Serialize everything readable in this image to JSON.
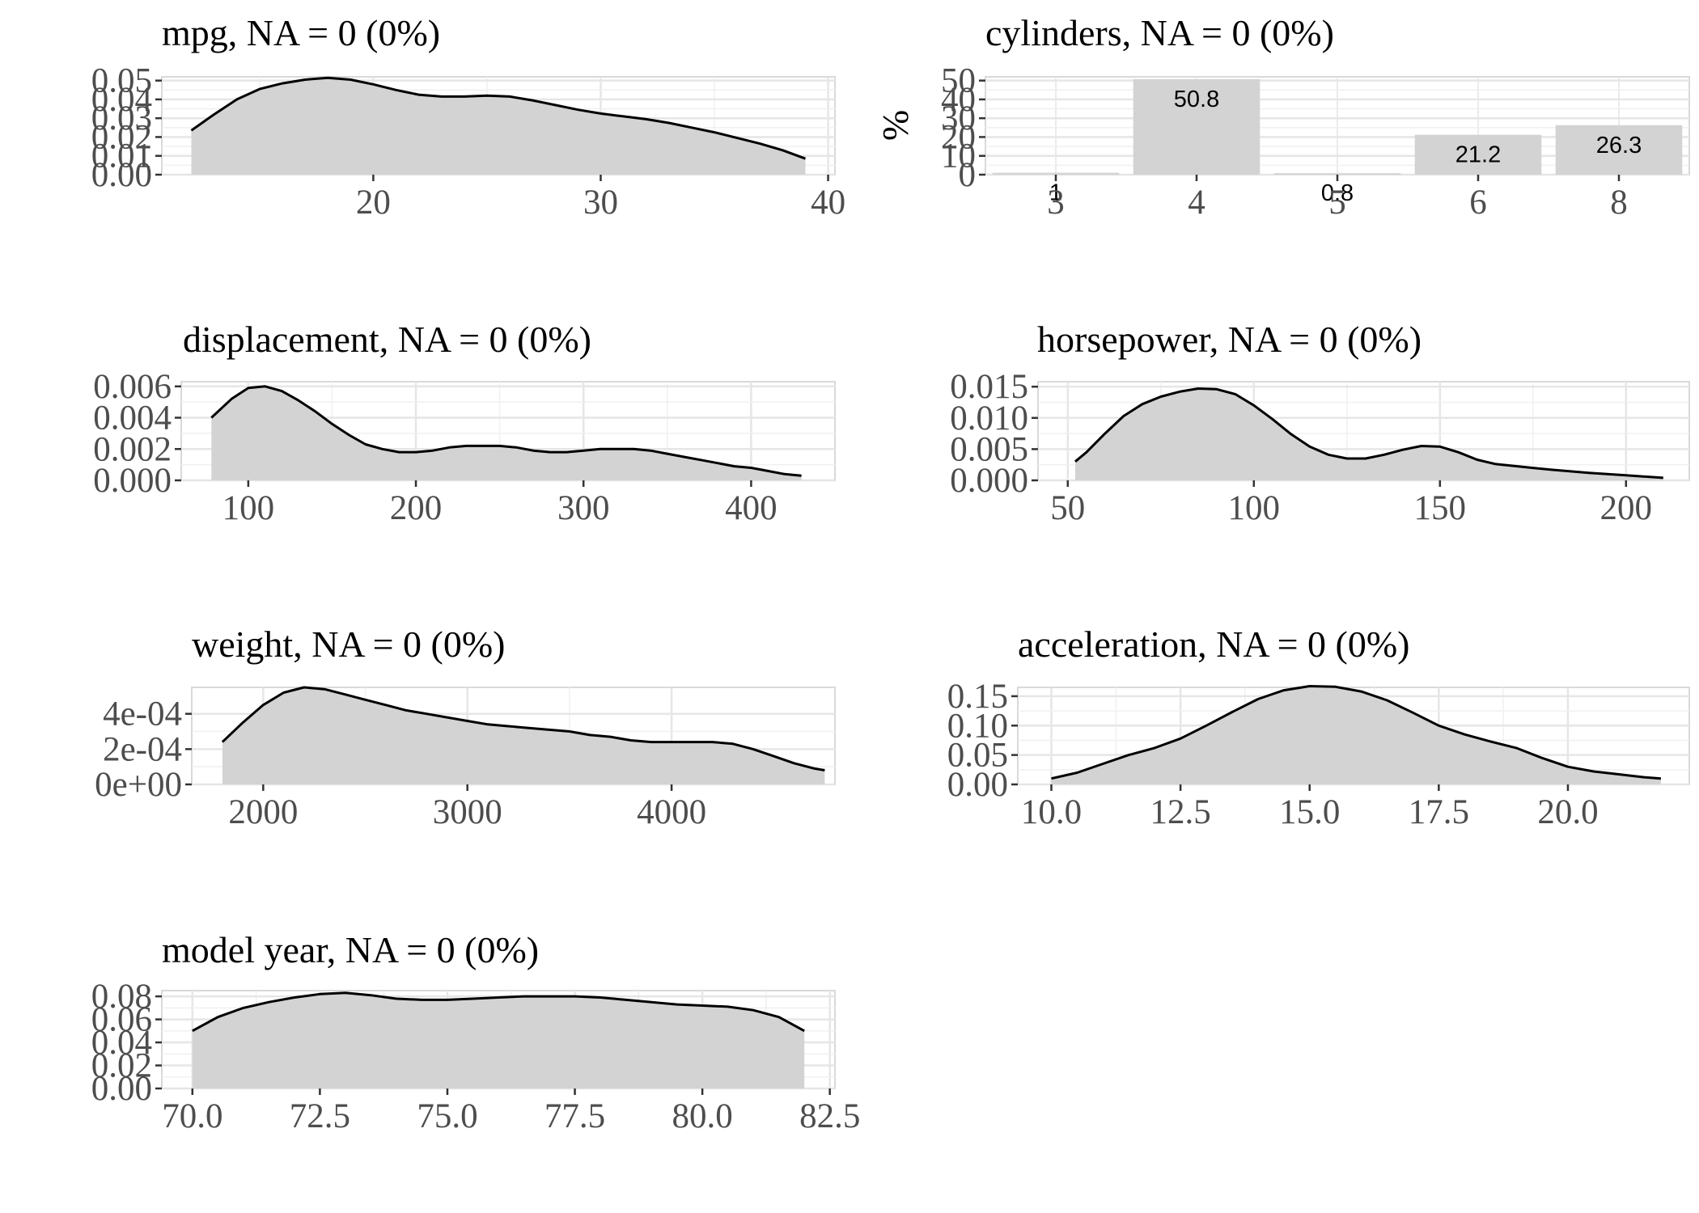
{
  "chart_data": [
    {
      "id": "mpg",
      "type": "area",
      "title": "mpg, NA = 0 (0%)",
      "xlim": [
        10.7,
        40.3
      ],
      "ylim": [
        0,
        0.052
      ],
      "xticks": [
        20,
        30,
        40
      ],
      "xtick_labels": [
        "20",
        "30",
        "40"
      ],
      "yticks": [
        0,
        0.01,
        0.02,
        0.03,
        0.04,
        0.05
      ],
      "ytick_labels": [
        "0.00",
        "0.01",
        "0.02",
        "0.03",
        "0.04",
        "0.05"
      ],
      "x": [
        12,
        13,
        14,
        15,
        16,
        17,
        18,
        19,
        20,
        21,
        22,
        23,
        24,
        25,
        26,
        27,
        28,
        29,
        30,
        31,
        32,
        33,
        34,
        35,
        36,
        37,
        38,
        39
      ],
      "y": [
        0.0235,
        0.032,
        0.04,
        0.0455,
        0.0485,
        0.0505,
        0.0515,
        0.0505,
        0.048,
        0.045,
        0.0425,
        0.0415,
        0.0415,
        0.042,
        0.0415,
        0.0395,
        0.037,
        0.0345,
        0.0325,
        0.031,
        0.0295,
        0.0275,
        0.025,
        0.0225,
        0.0195,
        0.0165,
        0.013,
        0.0085
      ],
      "grid": true
    },
    {
      "id": "cylinders",
      "type": "bar",
      "title": "cylinders, NA = 0 (0%)",
      "ylabel": "%",
      "categories": [
        "3",
        "4",
        "5",
        "6",
        "8"
      ],
      "values": [
        1,
        50.8,
        0.8,
        21.2,
        26.3
      ],
      "data_labels": [
        "1",
        "50.8",
        "0.8",
        "21.2",
        "26.3"
      ],
      "ylim": [
        0,
        52
      ],
      "yticks": [
        0,
        10,
        20,
        30,
        40,
        50
      ],
      "ytick_labels": [
        "0",
        "10",
        "20",
        "30",
        "40",
        "50"
      ],
      "grid": true
    },
    {
      "id": "displacement",
      "type": "area",
      "title": "displacement, NA = 0 (0%)",
      "xlim": [
        60,
        450
      ],
      "ylim": [
        0,
        0.0063
      ],
      "xticks": [
        100,
        200,
        300,
        400
      ],
      "xtick_labels": [
        "100",
        "200",
        "300",
        "400"
      ],
      "yticks": [
        0,
        0.002,
        0.004,
        0.006
      ],
      "ytick_labels": [
        "0.000",
        "0.002",
        "0.004",
        "0.006"
      ],
      "x": [
        78,
        90,
        100,
        110,
        120,
        130,
        140,
        150,
        160,
        170,
        180,
        190,
        200,
        210,
        220,
        230,
        240,
        250,
        260,
        270,
        280,
        290,
        300,
        310,
        320,
        330,
        340,
        350,
        360,
        370,
        380,
        390,
        400,
        410,
        420,
        430
      ],
      "y": [
        0.004,
        0.0052,
        0.0059,
        0.006,
        0.0057,
        0.0051,
        0.0044,
        0.0036,
        0.0029,
        0.0023,
        0.002,
        0.0018,
        0.0018,
        0.0019,
        0.0021,
        0.0022,
        0.0022,
        0.0022,
        0.0021,
        0.0019,
        0.0018,
        0.0018,
        0.0019,
        0.002,
        0.002,
        0.002,
        0.0019,
        0.0017,
        0.0015,
        0.0013,
        0.0011,
        0.0009,
        0.0008,
        0.0006,
        0.0004,
        0.0003
      ],
      "grid": true
    },
    {
      "id": "horsepower",
      "type": "area",
      "title": "horsepower, NA = 0 (0%)",
      "xlim": [
        42,
        217
      ],
      "ylim": [
        0,
        0.0158
      ],
      "xticks": [
        50,
        100,
        150,
        200
      ],
      "xtick_labels": [
        "50",
        "100",
        "150",
        "200"
      ],
      "yticks": [
        0,
        0.005,
        0.01,
        0.015
      ],
      "ytick_labels": [
        "0.000",
        "0.005",
        "0.010",
        "0.015"
      ],
      "x": [
        52,
        55,
        60,
        65,
        70,
        75,
        80,
        85,
        90,
        95,
        100,
        105,
        110,
        115,
        120,
        125,
        130,
        135,
        140,
        145,
        150,
        155,
        160,
        165,
        170,
        175,
        180,
        190,
        200,
        210
      ],
      "y": [
        0.003,
        0.0045,
        0.0075,
        0.0103,
        0.0122,
        0.0134,
        0.0142,
        0.0147,
        0.0146,
        0.0138,
        0.012,
        0.0098,
        0.0074,
        0.0054,
        0.0041,
        0.0035,
        0.0035,
        0.0041,
        0.0049,
        0.0055,
        0.0054,
        0.0045,
        0.0033,
        0.0026,
        0.0023,
        0.002,
        0.0017,
        0.0012,
        0.0008,
        0.0004
      ],
      "grid": true
    },
    {
      "id": "weight",
      "type": "area",
      "title": "weight, NA = 0 (0%)",
      "xlim": [
        1650,
        4800
      ],
      "ylim": [
        0,
        0.00055
      ],
      "xticks": [
        2000,
        3000,
        4000
      ],
      "xtick_labels": [
        "2000",
        "3000",
        "4000"
      ],
      "yticks": [
        0,
        0.0002,
        0.0004
      ],
      "ytick_labels": [
        "0e+00",
        "2e-04",
        "4e-04"
      ],
      "x": [
        1800,
        1900,
        2000,
        2100,
        2200,
        2300,
        2400,
        2500,
        2600,
        2700,
        2800,
        2900,
        3000,
        3100,
        3200,
        3300,
        3400,
        3500,
        3600,
        3700,
        3800,
        3900,
        4000,
        4100,
        4200,
        4300,
        4400,
        4500,
        4600,
        4700,
        4750
      ],
      "y": [
        0.00024,
        0.00035,
        0.00045,
        0.00052,
        0.00055,
        0.00054,
        0.00051,
        0.00048,
        0.00045,
        0.00042,
        0.0004,
        0.00038,
        0.00036,
        0.00034,
        0.00033,
        0.00032,
        0.00031,
        0.0003,
        0.00028,
        0.00027,
        0.00025,
        0.00024,
        0.00024,
        0.00024,
        0.00024,
        0.00023,
        0.0002,
        0.00016,
        0.00012,
        9e-05,
        8e-05
      ],
      "grid": true
    },
    {
      "id": "acceleration",
      "type": "area",
      "title": "acceleration, NA = 0 (0%)",
      "xlim": [
        9.35,
        22.35
      ],
      "ylim": [
        0,
        0.165
      ],
      "xticks": [
        10,
        12.5,
        15,
        17.5,
        20
      ],
      "xtick_labels": [
        "10.0",
        "12.5",
        "15.0",
        "17.5",
        "20.0"
      ],
      "yticks": [
        0,
        0.05,
        0.1,
        0.15
      ],
      "ytick_labels": [
        "0.00",
        "0.05",
        "0.10",
        "0.15"
      ],
      "x": [
        10,
        10.5,
        11,
        11.5,
        12,
        12.5,
        13,
        13.5,
        14,
        14.5,
        15,
        15.5,
        16,
        16.5,
        17,
        17.5,
        18,
        18.5,
        19,
        19.5,
        20,
        20.5,
        21,
        21.5,
        21.8
      ],
      "y": [
        0.01,
        0.02,
        0.035,
        0.05,
        0.062,
        0.078,
        0.1,
        0.123,
        0.145,
        0.16,
        0.167,
        0.166,
        0.158,
        0.143,
        0.122,
        0.1,
        0.085,
        0.073,
        0.062,
        0.045,
        0.03,
        0.022,
        0.017,
        0.012,
        0.01
      ],
      "grid": true
    },
    {
      "id": "model-year",
      "type": "area",
      "title": "model year, NA = 0 (0%)",
      "xlim": [
        69.4,
        82.6
      ],
      "ylim": [
        0,
        0.085
      ],
      "xticks": [
        70,
        72.5,
        75,
        77.5,
        80,
        82.5
      ],
      "xtick_labels": [
        "70.0",
        "72.5",
        "75.0",
        "77.5",
        "80.0",
        "82.5"
      ],
      "yticks": [
        0,
        0.02,
        0.04,
        0.06,
        0.08
      ],
      "ytick_labels": [
        "0.00",
        "0.02",
        "0.04",
        "0.06",
        "0.08"
      ],
      "x": [
        70,
        70.5,
        71,
        71.5,
        72,
        72.5,
        73,
        73.5,
        74,
        74.5,
        75,
        75.5,
        76,
        76.5,
        77,
        77.5,
        78,
        78.5,
        79,
        79.5,
        80,
        80.5,
        81,
        81.5,
        82
      ],
      "y": [
        0.05,
        0.062,
        0.07,
        0.075,
        0.079,
        0.082,
        0.083,
        0.081,
        0.078,
        0.077,
        0.077,
        0.078,
        0.079,
        0.08,
        0.08,
        0.08,
        0.079,
        0.077,
        0.075,
        0.073,
        0.072,
        0.071,
        0.068,
        0.062,
        0.05
      ],
      "grid": true
    }
  ]
}
